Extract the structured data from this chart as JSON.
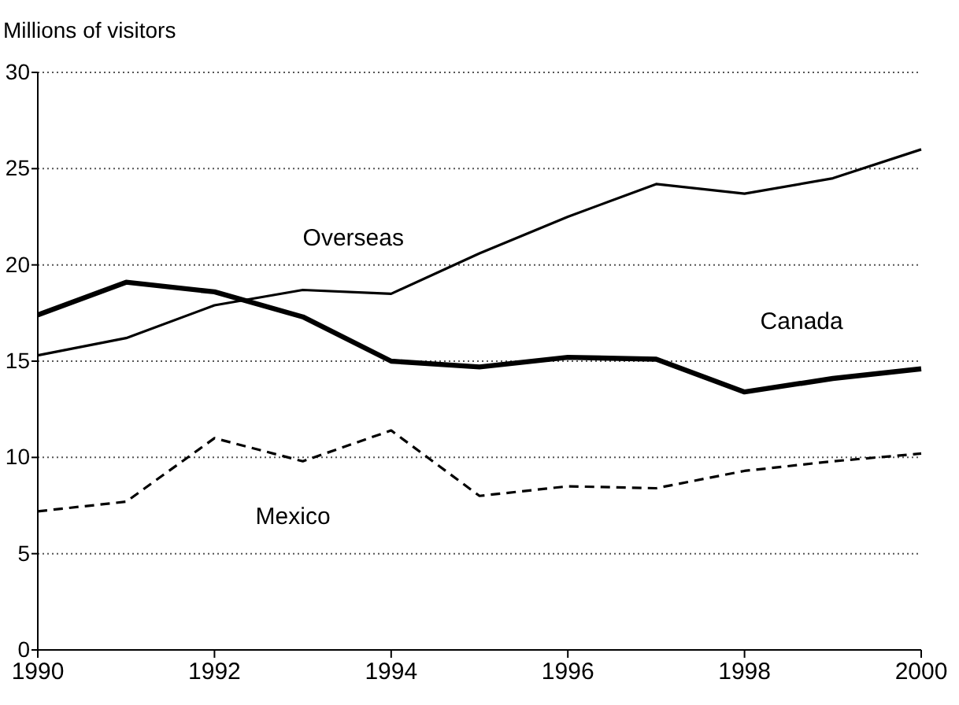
{
  "chart_data": {
    "type": "line",
    "ylabel": "Millions of visitors",
    "x": [
      1990,
      1991,
      1992,
      1993,
      1994,
      1995,
      1996,
      1997,
      1998,
      1999,
      2000
    ],
    "xlim": [
      1990,
      2000
    ],
    "xticks": [
      1990,
      1992,
      1994,
      1996,
      1998,
      2000
    ],
    "ylim": [
      0,
      30
    ],
    "yticks": [
      0,
      5,
      10,
      15,
      20,
      25,
      30
    ],
    "grid": "y",
    "series": [
      {
        "name": "Overseas",
        "color": "#000000",
        "line_style": "solid",
        "values": [
          15.3,
          16.2,
          17.9,
          18.7,
          18.5,
          20.6,
          22.5,
          24.2,
          23.7,
          24.5,
          26.0
        ]
      },
      {
        "name": "Canada",
        "color": "#000000",
        "line_style": "solid",
        "values": [
          17.4,
          19.1,
          18.6,
          17.3,
          15.0,
          14.7,
          15.2,
          15.1,
          13.4,
          14.1,
          14.6
        ]
      },
      {
        "name": "Mexico",
        "color": "#000000",
        "line_style": "dashed",
        "values": [
          7.2,
          7.7,
          11.0,
          9.8,
          11.4,
          8.0,
          8.5,
          8.4,
          9.3,
          9.8,
          10.2
        ]
      }
    ]
  }
}
